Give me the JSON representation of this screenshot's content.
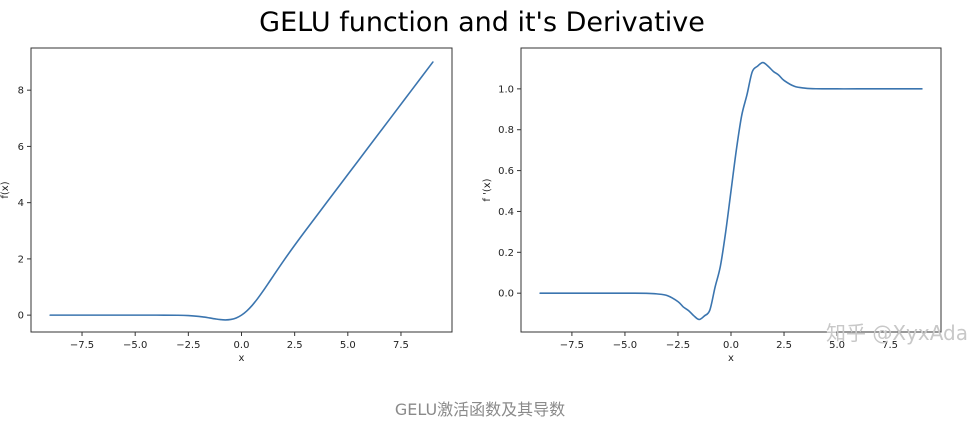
{
  "figure": {
    "title": "GELU function and it's Derivative",
    "caption": "GELU激活函数及其导数",
    "watermark": "知乎 @XyxAda"
  },
  "chart_data": [
    {
      "type": "line",
      "title": "",
      "xlabel": "x",
      "ylabel": "f(x)",
      "xlim": [
        -9.9,
        9.9
      ],
      "ylim": [
        -0.6,
        9.5
      ],
      "xticks": [
        -7.5,
        -5.0,
        -2.5,
        0.0,
        2.5,
        5.0,
        7.5
      ],
      "xtick_labels": [
        "−7.5",
        "−5.0",
        "−2.5",
        "0.0",
        "2.5",
        "5.0",
        "7.5"
      ],
      "yticks": [
        0,
        2,
        4,
        6,
        8
      ],
      "ytick_labels": [
        "0",
        "2",
        "4",
        "6",
        "8"
      ],
      "grid": false,
      "color": "#3b75af",
      "series": [
        {
          "x": [
            -9,
            -7.5,
            -6,
            -5,
            -4,
            -3,
            -2.5,
            -2,
            -1.75,
            -1.5,
            -1.25,
            -1,
            -0.75,
            -0.5,
            -0.25,
            0,
            0.25,
            0.5,
            0.75,
            1,
            1.25,
            1.5,
            2,
            2.5,
            3,
            4,
            5,
            6,
            7,
            8,
            9
          ],
          "y": [
            0,
            0,
            0,
            0,
            -0.0001,
            -0.004,
            -0.0155,
            -0.0455,
            -0.0702,
            -0.1002,
            -0.132,
            -0.1587,
            -0.17,
            -0.1543,
            -0.1003,
            0,
            0.1497,
            0.3457,
            0.58,
            0.8413,
            1.118,
            1.3998,
            1.9545,
            2.4845,
            2.996,
            4.0,
            5.0,
            6.0,
            7.0,
            8.0,
            9.0
          ]
        }
      ]
    },
    {
      "type": "line",
      "title": "",
      "xlabel": "x",
      "ylabel": "f '(x)",
      "xlim": [
        -9.9,
        9.9
      ],
      "ylim": [
        -0.19,
        1.2
      ],
      "xticks": [
        -7.5,
        -5.0,
        -2.5,
        0.0,
        2.5,
        5.0,
        7.5
      ],
      "xtick_labels": [
        "−7.5",
        "−5.0",
        "−2.5",
        "0.0",
        "2.5",
        "5.0",
        "7.5"
      ],
      "yticks": [
        0.0,
        0.2,
        0.4,
        0.6,
        0.8,
        1.0
      ],
      "ytick_labels": [
        "0.0",
        "0.2",
        "0.4",
        "0.6",
        "0.8",
        "1.0"
      ],
      "grid": false,
      "color": "#3b75af",
      "series": [
        {
          "x": [
            -9,
            -7.5,
            -6,
            -5,
            -4,
            -3.5,
            -3,
            -2.5,
            -2.25,
            -2,
            -1.75,
            -1.5,
            -1.25,
            -1,
            -0.75,
            -0.5,
            -0.25,
            0,
            0.25,
            0.5,
            0.75,
            1,
            1.25,
            1.5,
            1.75,
            2,
            2.25,
            2.5,
            3,
            3.5,
            4,
            5,
            6,
            7.5,
            9
          ],
          "y": [
            0,
            0,
            0,
            0,
            -0.0005,
            -0.0035,
            -0.0119,
            -0.0412,
            -0.0674,
            -0.0852,
            -0.1108,
            -0.1288,
            -0.111,
            -0.0833,
            0.03,
            0.1325,
            0.3003,
            0.5,
            0.6997,
            0.8675,
            0.97,
            1.0833,
            1.111,
            1.1288,
            1.1108,
            1.0852,
            1.0674,
            1.0412,
            1.0119,
            1.0035,
            1.0005,
            1.0,
            1.0,
            1.0,
            1.0
          ]
        }
      ]
    }
  ]
}
